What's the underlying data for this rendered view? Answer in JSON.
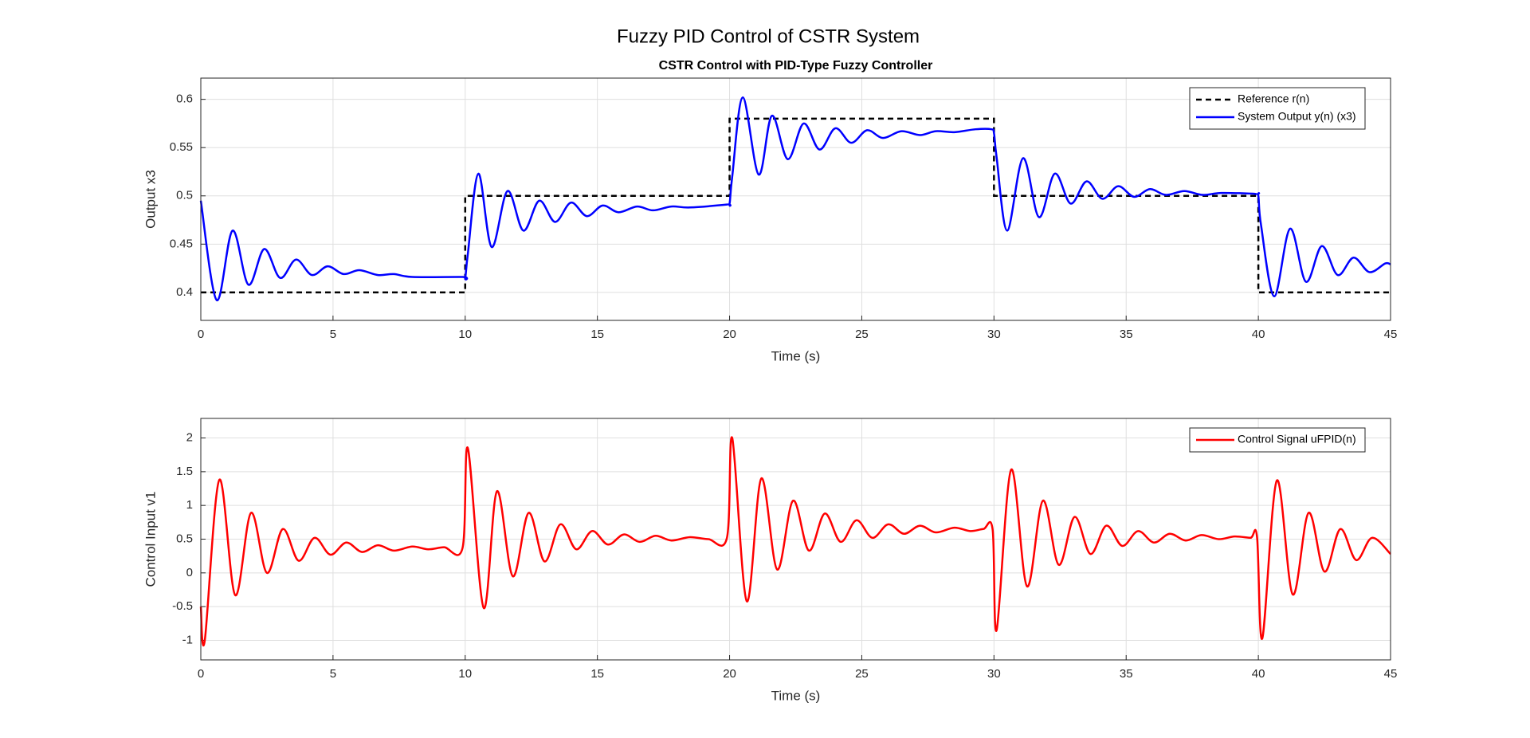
{
  "title": "Fuzzy PID Control of CSTR System",
  "chart_data": [
    {
      "type": "line",
      "title": "CSTR Control with PID-Type Fuzzy Controller",
      "x_label": "Time (s)",
      "y_label": "Output x3",
      "xlim": [
        0,
        45
      ],
      "xticks": [
        0,
        5,
        10,
        15,
        20,
        25,
        30,
        35,
        40,
        45
      ],
      "ylim": [
        0.371,
        0.622
      ],
      "yticks": [
        0.4,
        0.45,
        0.5,
        0.55,
        0.6
      ],
      "grid": true,
      "legend": "upper right",
      "series": [
        {
          "name": "Reference r(n)",
          "color": "#000000",
          "linestyle": "dashed",
          "x": [
            0,
            10,
            10,
            20,
            20,
            30,
            30,
            40,
            40,
            45
          ],
          "values": [
            0.4,
            0.4,
            0.5,
            0.5,
            0.58,
            0.58,
            0.5,
            0.5,
            0.4,
            0.4
          ]
        },
        {
          "name": "System Output y(n) (x3)",
          "color": "#0000ff",
          "linestyle": "solid",
          "x": [
            0,
            0.6,
            1.2,
            1.8,
            2.4,
            3.0,
            3.6,
            4.2,
            4.8,
            5.4,
            6.0,
            6.7,
            7.3,
            8.0,
            9.9,
            10.0,
            10.1,
            10.5,
            11.0,
            11.6,
            12.2,
            12.8,
            13.4,
            14.0,
            14.6,
            15.2,
            15.8,
            16.5,
            17.1,
            17.8,
            18.5,
            19.9,
            20.0,
            20.1,
            20.5,
            21.1,
            21.6,
            22.2,
            22.8,
            23.4,
            24.0,
            24.6,
            25.2,
            25.8,
            26.5,
            27.2,
            27.8,
            28.5,
            29.3,
            29.9,
            30.0,
            30.1,
            30.5,
            31.1,
            31.7,
            32.3,
            32.9,
            33.5,
            34.1,
            34.7,
            35.3,
            35.9,
            36.5,
            37.2,
            37.9,
            38.6,
            39.9,
            40.0,
            40.1,
            40.6,
            41.2,
            41.8,
            42.4,
            43.0,
            43.6,
            44.2,
            44.8,
            45
          ],
          "values": [
            0.495,
            0.392,
            0.464,
            0.408,
            0.445,
            0.415,
            0.434,
            0.418,
            0.427,
            0.419,
            0.423,
            0.418,
            0.419,
            0.416,
            0.416,
            0.415,
            0.44,
            0.523,
            0.447,
            0.505,
            0.464,
            0.495,
            0.473,
            0.493,
            0.479,
            0.49,
            0.483,
            0.489,
            0.485,
            0.489,
            0.488,
            0.491,
            0.492,
            0.52,
            0.602,
            0.522,
            0.583,
            0.538,
            0.575,
            0.548,
            0.57,
            0.555,
            0.568,
            0.56,
            0.567,
            0.563,
            0.567,
            0.566,
            0.569,
            0.569,
            0.565,
            0.54,
            0.464,
            0.539,
            0.478,
            0.523,
            0.492,
            0.515,
            0.497,
            0.51,
            0.499,
            0.507,
            0.501,
            0.505,
            0.501,
            0.503,
            0.502,
            0.5,
            0.47,
            0.396,
            0.466,
            0.411,
            0.448,
            0.418,
            0.436,
            0.421,
            0.43,
            0.429
          ]
        }
      ]
    },
    {
      "type": "line",
      "x_label": "Time (s)",
      "y_label": "Control Input v1",
      "xlim": [
        0,
        45
      ],
      "xticks": [
        0,
        5,
        10,
        15,
        20,
        25,
        30,
        35,
        40,
        45
      ],
      "ylim": [
        -1.29,
        2.29
      ],
      "yticks": [
        -1,
        -0.5,
        0,
        0.5,
        1,
        1.5,
        2
      ],
      "grid": true,
      "legend": "upper right",
      "series": [
        {
          "name": "Control Signal uFPID(n)",
          "color": "#ff0000",
          "linestyle": "solid",
          "x": [
            0,
            0.15,
            0.7,
            1.3,
            1.9,
            2.5,
            3.1,
            3.7,
            4.3,
            4.9,
            5.5,
            6.1,
            6.7,
            7.3,
            8.0,
            8.6,
            9.2,
            9.9,
            10.1,
            10.7,
            11.2,
            11.8,
            12.4,
            13.0,
            13.6,
            14.2,
            14.8,
            15.4,
            16.0,
            16.6,
            17.2,
            17.8,
            18.5,
            19.2,
            19.9,
            20.1,
            20.65,
            21.2,
            21.8,
            22.4,
            23.0,
            23.6,
            24.2,
            24.8,
            25.4,
            26.0,
            26.6,
            27.2,
            27.8,
            28.5,
            29.1,
            29.6,
            29.95,
            30.1,
            30.65,
            31.25,
            31.85,
            32.45,
            33.05,
            33.65,
            34.25,
            34.85,
            35.45,
            36.05,
            36.65,
            37.25,
            37.85,
            38.5,
            39.1,
            39.7,
            39.95,
            40.15,
            40.7,
            41.3,
            41.9,
            42.5,
            43.1,
            43.7,
            44.3,
            45.0
          ],
          "values": [
            -0.5,
            -1.0,
            1.38,
            -0.33,
            0.89,
            0.0,
            0.65,
            0.18,
            0.52,
            0.27,
            0.45,
            0.31,
            0.41,
            0.33,
            0.39,
            0.35,
            0.38,
            0.37,
            1.85,
            -0.52,
            1.21,
            -0.05,
            0.89,
            0.17,
            0.72,
            0.35,
            0.62,
            0.42,
            0.57,
            0.46,
            0.55,
            0.48,
            0.53,
            0.5,
            0.52,
            2.0,
            -0.42,
            1.4,
            0.05,
            1.07,
            0.33,
            0.88,
            0.46,
            0.78,
            0.52,
            0.72,
            0.58,
            0.7,
            0.6,
            0.67,
            0.62,
            0.65,
            0.64,
            -0.85,
            1.53,
            -0.2,
            1.07,
            0.12,
            0.83,
            0.28,
            0.7,
            0.4,
            0.62,
            0.45,
            0.58,
            0.48,
            0.56,
            0.5,
            0.54,
            0.52,
            0.53,
            -0.97,
            1.37,
            -0.32,
            0.89,
            0.02,
            0.65,
            0.19,
            0.52,
            0.28
          ]
        }
      ]
    }
  ]
}
